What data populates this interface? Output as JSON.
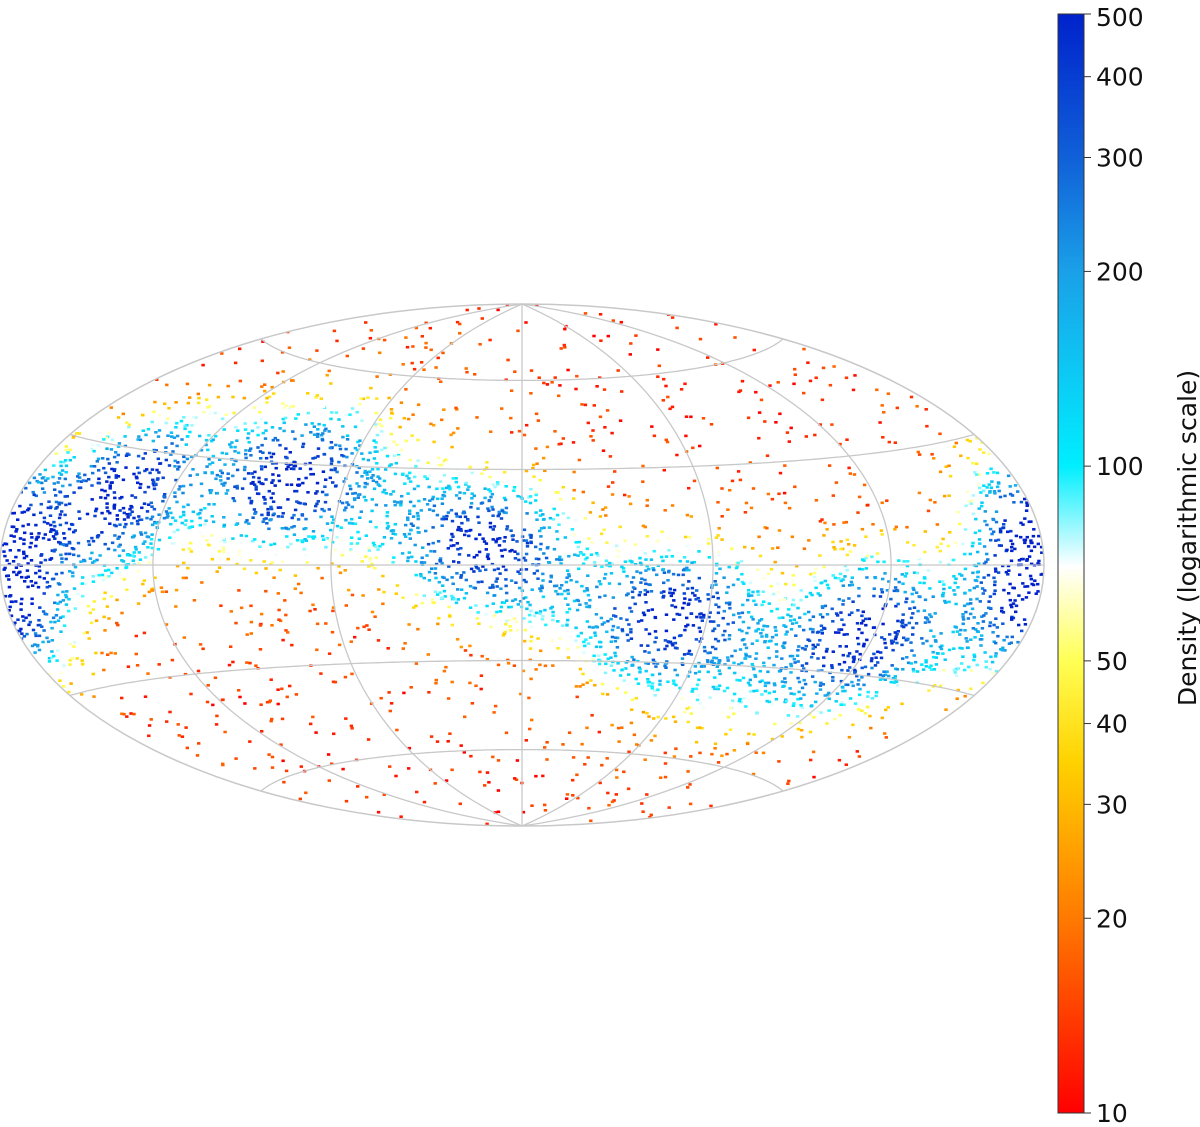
{
  "chart_data": {
    "type": "heatmap",
    "projection": "hammer-aitoff",
    "title": "",
    "colorbar": {
      "label": "Density (logarithmic scale)",
      "scale": "log",
      "range": [
        10,
        500
      ],
      "ticks": [
        {
          "value": 10,
          "label": "10"
        },
        {
          "value": 20,
          "label": "20"
        },
        {
          "value": 30,
          "label": "30"
        },
        {
          "value": 40,
          "label": "40"
        },
        {
          "value": 50,
          "label": "50"
        },
        {
          "value": 100,
          "label": "100"
        },
        {
          "value": 200,
          "label": "200"
        },
        {
          "value": 300,
          "label": "300"
        },
        {
          "value": 400,
          "label": "400"
        },
        {
          "value": 500,
          "label": "500"
        }
      ],
      "colormap": [
        "#ff0000",
        "#ff7a00",
        "#ffd200",
        "#ffff55",
        "#ffffff",
        "#00eeff",
        "#1aa0e8",
        "#1060d8",
        "#0022cc"
      ],
      "colormap_stops": [
        10,
        20,
        35,
        50,
        70,
        100,
        200,
        300,
        500
      ]
    },
    "grid": true,
    "grid_color": "#c8c8c8",
    "density_band": {
      "description_shape": "sinusoidal band crossing the sky",
      "amplitude_deg": 28,
      "phase_deg": 0
    },
    "density_peaks": [
      {
        "lon": -140,
        "lat": 18,
        "density": 420
      },
      {
        "lon": -80,
        "lat": 25,
        "density": 420
      },
      {
        "lon": -12,
        "lat": 6,
        "density": 380
      },
      {
        "lon": 50,
        "lat": -15,
        "density": 430
      },
      {
        "lon": 115,
        "lat": -18,
        "density": 430
      },
      {
        "lon": 180,
        "lat": 0,
        "density": 480
      },
      {
        "lon": -180,
        "lat": 0,
        "density": 480
      }
    ]
  }
}
